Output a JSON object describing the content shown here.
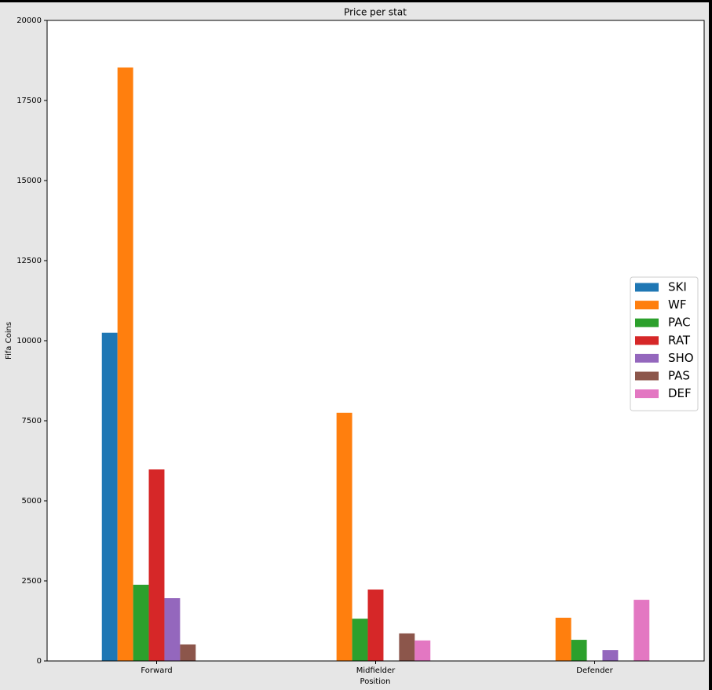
{
  "chart_data": {
    "type": "bar",
    "title": "Price per stat",
    "x_label": "Position",
    "y_label": "Fifa Coins",
    "categories": [
      "Forward",
      "Midfielder",
      "Defender"
    ],
    "series": [
      {
        "name": "SKI",
        "color": "#1f77b4",
        "values": [
          10250,
          null,
          null
        ]
      },
      {
        "name": "WF",
        "color": "#ff7f0e",
        "values": [
          18530,
          7750,
          1350
        ]
      },
      {
        "name": "PAC",
        "color": "#2ca02c",
        "values": [
          2380,
          1320,
          660
        ]
      },
      {
        "name": "RAT",
        "color": "#d62728",
        "values": [
          5980,
          2230,
          null
        ]
      },
      {
        "name": "SHO",
        "color": "#9467bd",
        "values": [
          1960,
          null,
          340
        ]
      },
      {
        "name": "PAS",
        "color": "#8c564b",
        "values": [
          515,
          860,
          null
        ]
      },
      {
        "name": "DEF",
        "color": "#e377c2",
        "values": [
          null,
          640,
          1910
        ]
      }
    ],
    "ylim": [
      0,
      20000
    ],
    "yticks": [
      0,
      2500,
      5000,
      7500,
      10000,
      12500,
      15000,
      17500,
      20000
    ],
    "legend": "right"
  }
}
